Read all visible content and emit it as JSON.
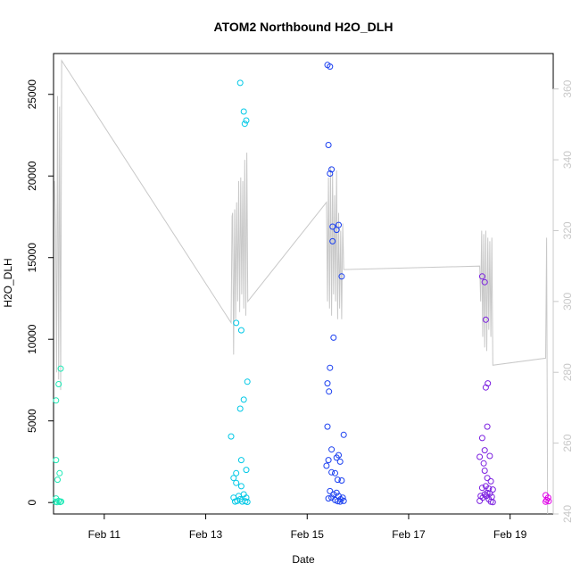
{
  "chart_data": {
    "type": "scatter",
    "title": "ATOM2 Northbound H2O_DLH",
    "xlabel": "Date",
    "ylabel": "H2O_DLH",
    "x_ticks": [
      "Feb 11",
      "Feb 13",
      "Feb 15",
      "Feb 17",
      "Feb 19"
    ],
    "x_ticks_day": [
      11,
      13,
      15,
      17,
      19
    ],
    "xlim": [
      10.0,
      19.85
    ],
    "ylim": [
      -700,
      27500
    ],
    "y_ticks": [
      "0",
      "5000",
      "10000",
      "15000",
      "20000",
      "25000"
    ],
    "y_ticks_values": [
      0,
      5000,
      10000,
      15000,
      20000,
      25000
    ],
    "y2lim": [
      240,
      370
    ],
    "y2_ticks": [
      "240",
      "260",
      "280",
      "300",
      "320",
      "340",
      "360"
    ],
    "y2_ticks_values": [
      240,
      260,
      280,
      300,
      320,
      340,
      360
    ],
    "grid": false,
    "legend": "none",
    "colors": {
      "line": "#c8c8c8",
      "points": [
        "#1de9b6",
        "#00c8e6",
        "#1a3ff0",
        "#7b1fe0",
        "#e000e8"
      ],
      "frame": "#000000",
      "right_axis": "#c8c8c8"
    },
    "point_series": [
      {
        "color": "#1de9b6",
        "points": [
          [
            10.05,
            6250
          ],
          [
            10.1,
            7250
          ],
          [
            10.14,
            8200
          ],
          [
            10.05,
            2600
          ],
          [
            10.12,
            1800
          ],
          [
            10.08,
            1400
          ],
          [
            10.05,
            250
          ],
          [
            10.1,
            100
          ],
          [
            10.04,
            50
          ],
          [
            10.07,
            20
          ],
          [
            10.13,
            30
          ],
          [
            10.15,
            60
          ]
        ]
      },
      {
        "color": "#00c8e6",
        "points": [
          [
            13.6,
            11000
          ],
          [
            13.7,
            10550
          ],
          [
            13.68,
            25700
          ],
          [
            13.75,
            23950
          ],
          [
            13.77,
            23200
          ],
          [
            13.8,
            23400
          ],
          [
            13.82,
            7400
          ],
          [
            13.75,
            6300
          ],
          [
            13.68,
            5750
          ],
          [
            13.5,
            4050
          ],
          [
            13.7,
            2600
          ],
          [
            13.6,
            1800
          ],
          [
            13.55,
            1500
          ],
          [
            13.8,
            2000
          ],
          [
            13.6,
            1200
          ],
          [
            13.7,
            1000
          ],
          [
            13.65,
            400
          ],
          [
            13.75,
            500
          ],
          [
            13.8,
            300
          ],
          [
            13.55,
            300
          ],
          [
            13.62,
            100
          ],
          [
            13.68,
            200
          ],
          [
            13.72,
            60
          ],
          [
            13.78,
            80
          ],
          [
            13.82,
            40
          ],
          [
            13.58,
            60
          ]
        ]
      },
      {
        "color": "#1a3ff0",
        "points": [
          [
            15.4,
            26800
          ],
          [
            15.45,
            26700
          ],
          [
            15.42,
            21900
          ],
          [
            15.45,
            20150
          ],
          [
            15.48,
            20400
          ],
          [
            15.5,
            16900
          ],
          [
            15.58,
            16700
          ],
          [
            15.62,
            17000
          ],
          [
            15.5,
            16000
          ],
          [
            15.68,
            13850
          ],
          [
            15.52,
            10100
          ],
          [
            15.45,
            8250
          ],
          [
            15.4,
            7300
          ],
          [
            15.43,
            6800
          ],
          [
            15.4,
            4650
          ],
          [
            15.72,
            4150
          ],
          [
            15.48,
            3250
          ],
          [
            15.62,
            2900
          ],
          [
            15.65,
            2500
          ],
          [
            15.58,
            2750
          ],
          [
            15.42,
            2600
          ],
          [
            15.38,
            2250
          ],
          [
            15.48,
            1850
          ],
          [
            15.55,
            1800
          ],
          [
            15.6,
            1400
          ],
          [
            15.68,
            1350
          ],
          [
            15.45,
            700
          ],
          [
            15.52,
            500
          ],
          [
            15.58,
            600
          ],
          [
            15.62,
            400
          ],
          [
            15.66,
            200
          ],
          [
            15.7,
            300
          ],
          [
            15.42,
            250
          ],
          [
            15.48,
            300
          ],
          [
            15.55,
            150
          ],
          [
            15.6,
            80
          ],
          [
            15.65,
            60
          ],
          [
            15.72,
            100
          ]
        ]
      },
      {
        "color": "#7b1fe0",
        "points": [
          [
            18.45,
            13850
          ],
          [
            18.5,
            13500
          ],
          [
            18.52,
            11200
          ],
          [
            18.52,
            7050
          ],
          [
            18.56,
            7300
          ],
          [
            18.55,
            4650
          ],
          [
            18.45,
            3950
          ],
          [
            18.5,
            3200
          ],
          [
            18.4,
            2800
          ],
          [
            18.6,
            2850
          ],
          [
            18.48,
            2400
          ],
          [
            18.5,
            1950
          ],
          [
            18.55,
            1500
          ],
          [
            18.62,
            1300
          ],
          [
            18.45,
            900
          ],
          [
            18.52,
            1000
          ],
          [
            18.58,
            850
          ],
          [
            18.66,
            800
          ],
          [
            18.42,
            400
          ],
          [
            18.46,
            300
          ],
          [
            18.5,
            500
          ],
          [
            18.55,
            600
          ],
          [
            18.6,
            550
          ],
          [
            18.64,
            350
          ],
          [
            18.4,
            100
          ],
          [
            18.58,
            200
          ],
          [
            18.62,
            50
          ],
          [
            18.66,
            20
          ],
          [
            18.53,
            400
          ]
        ]
      },
      {
        "color": "#e000e8",
        "points": [
          [
            19.7,
            450
          ],
          [
            19.75,
            300
          ],
          [
            19.72,
            150
          ],
          [
            19.7,
            50
          ],
          [
            19.76,
            80
          ]
        ]
      }
    ],
    "line_series": {
      "color": "#c8c8c8",
      "axis": "right",
      "points": [
        [
          10.02,
          334
        ],
        [
          10.04,
          320
        ],
        [
          10.06,
          280
        ],
        [
          10.08,
          358
        ],
        [
          10.1,
          278
        ],
        [
          10.12,
          355
        ],
        [
          10.14,
          275
        ],
        [
          10.16,
          368
        ],
        [
          13.5,
          294
        ],
        [
          13.52,
          324
        ],
        [
          13.53,
          325
        ],
        [
          13.55,
          285
        ],
        [
          13.57,
          326
        ],
        [
          13.59,
          295
        ],
        [
          13.61,
          328
        ],
        [
          13.63,
          300
        ],
        [
          13.65,
          334
        ],
        [
          13.67,
          297
        ],
        [
          13.69,
          335
        ],
        [
          13.71,
          302
        ],
        [
          13.73,
          334
        ],
        [
          13.75,
          298
        ],
        [
          13.77,
          340
        ],
        [
          13.79,
          296
        ],
        [
          13.81,
          342
        ],
        [
          13.83,
          300
        ],
        [
          15.38,
          328
        ],
        [
          15.4,
          300
        ],
        [
          15.42,
          335
        ],
        [
          15.44,
          298
        ],
        [
          15.46,
          338
        ],
        [
          15.48,
          296
        ],
        [
          15.5,
          336
        ],
        [
          15.52,
          302
        ],
        [
          15.54,
          330
        ],
        [
          15.56,
          300
        ],
        [
          15.58,
          337
        ],
        [
          15.6,
          295
        ],
        [
          15.62,
          325
        ],
        [
          15.64,
          298
        ],
        [
          15.66,
          320
        ],
        [
          15.68,
          295
        ],
        [
          15.7,
          322
        ],
        [
          15.72,
          309
        ],
        [
          18.4,
          310
        ],
        [
          18.42,
          300
        ],
        [
          18.44,
          320
        ],
        [
          18.46,
          290
        ],
        [
          18.48,
          319
        ],
        [
          18.5,
          287
        ],
        [
          18.52,
          320
        ],
        [
          18.54,
          286
        ],
        [
          18.56,
          318
        ],
        [
          18.58,
          292
        ],
        [
          18.6,
          317
        ],
        [
          18.62,
          290
        ],
        [
          18.64,
          318
        ],
        [
          18.66,
          282
        ],
        [
          19.7,
          284
        ],
        [
          19.72,
          318
        ],
        [
          19.74,
          240
        ]
      ]
    }
  }
}
